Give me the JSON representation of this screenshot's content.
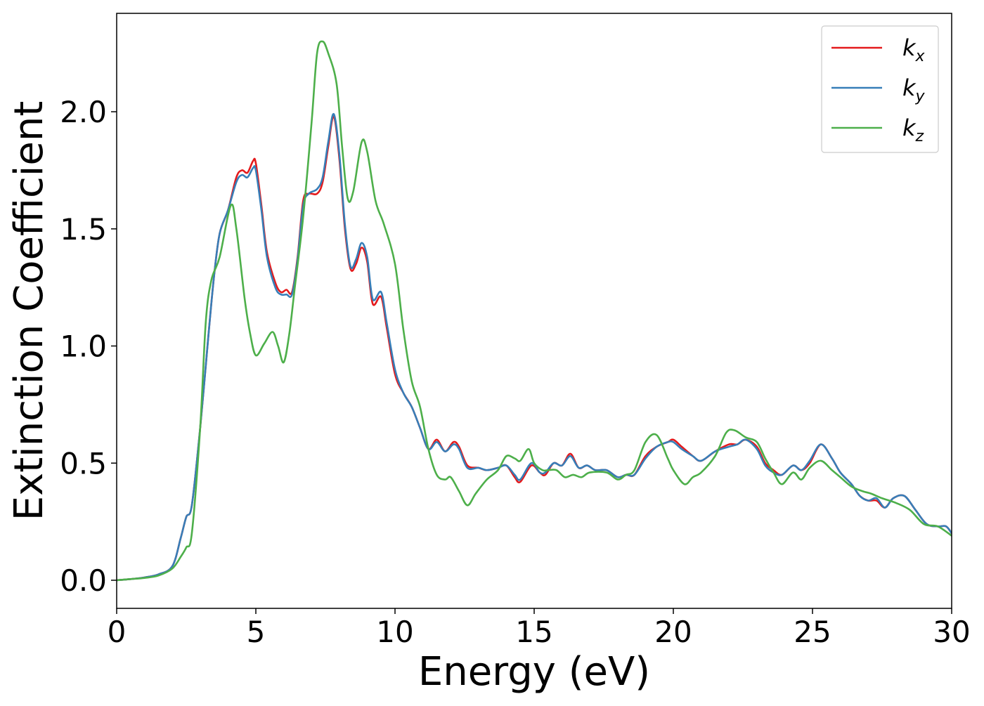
{
  "chart_data": {
    "type": "line",
    "title": "",
    "xlabel": "Energy (eV)",
    "ylabel": "Extinction Coefficient",
    "xlim": [
      0,
      30
    ],
    "ylim": [
      -0.12,
      2.42
    ],
    "xticks": [
      0,
      5,
      10,
      15,
      20,
      25,
      30
    ],
    "xtick_labels": [
      "0",
      "5",
      "10",
      "15",
      "20",
      "25",
      "30"
    ],
    "yticks": [
      0.0,
      0.5,
      1.0,
      1.5,
      2.0
    ],
    "ytick_labels": [
      "0.0",
      "0.5",
      "1.0",
      "1.5",
      "2.0"
    ],
    "grid": false,
    "legend_position": "top-right",
    "series": [
      {
        "name": "k_x",
        "label_base": "k",
        "label_sub": "x",
        "color": "#e41a1c",
        "points": [
          [
            0,
            0
          ],
          [
            0.5,
            0.005
          ],
          [
            1,
            0.012
          ],
          [
            1.5,
            0.025
          ],
          [
            2,
            0.06
          ],
          [
            2.3,
            0.18
          ],
          [
            2.5,
            0.27
          ],
          [
            2.7,
            0.32
          ],
          [
            3,
            0.65
          ],
          [
            3.3,
            1.05
          ],
          [
            3.5,
            1.3
          ],
          [
            3.7,
            1.48
          ],
          [
            4,
            1.58
          ],
          [
            4.3,
            1.72
          ],
          [
            4.5,
            1.75
          ],
          [
            4.7,
            1.74
          ],
          [
            4.9,
            1.79
          ],
          [
            5,
            1.78
          ],
          [
            5.2,
            1.6
          ],
          [
            5.4,
            1.4
          ],
          [
            5.7,
            1.27
          ],
          [
            5.9,
            1.23
          ],
          [
            6.1,
            1.24
          ],
          [
            6.3,
            1.23
          ],
          [
            6.5,
            1.38
          ],
          [
            6.7,
            1.62
          ],
          [
            6.9,
            1.65
          ],
          [
            7.2,
            1.65
          ],
          [
            7.4,
            1.7
          ],
          [
            7.6,
            1.85
          ],
          [
            7.8,
            1.98
          ],
          [
            8,
            1.8
          ],
          [
            8.2,
            1.5
          ],
          [
            8.4,
            1.33
          ],
          [
            8.6,
            1.35
          ],
          [
            8.8,
            1.42
          ],
          [
            9,
            1.36
          ],
          [
            9.2,
            1.18
          ],
          [
            9.5,
            1.21
          ],
          [
            9.7,
            1.08
          ],
          [
            10,
            0.88
          ],
          [
            10.3,
            0.8
          ],
          [
            10.6,
            0.74
          ],
          [
            10.9,
            0.65
          ],
          [
            11.2,
            0.56
          ],
          [
            11.5,
            0.6
          ],
          [
            11.8,
            0.55
          ],
          [
            12.1,
            0.59
          ],
          [
            12.3,
            0.57
          ],
          [
            12.6,
            0.49
          ],
          [
            13,
            0.48
          ],
          [
            13.3,
            0.47
          ],
          [
            13.7,
            0.48
          ],
          [
            14,
            0.49
          ],
          [
            14.3,
            0.44
          ],
          [
            14.5,
            0.42
          ],
          [
            14.9,
            0.49
          ],
          [
            15.2,
            0.46
          ],
          [
            15.4,
            0.45
          ],
          [
            15.7,
            0.5
          ],
          [
            16,
            0.49
          ],
          [
            16.3,
            0.54
          ],
          [
            16.6,
            0.48
          ],
          [
            16.9,
            0.49
          ],
          [
            17.2,
            0.47
          ],
          [
            17.6,
            0.47
          ],
          [
            18,
            0.44
          ],
          [
            18.3,
            0.45
          ],
          [
            18.6,
            0.45
          ],
          [
            19,
            0.53
          ],
          [
            19.4,
            0.57
          ],
          [
            19.8,
            0.59
          ],
          [
            20,
            0.6
          ],
          [
            20.3,
            0.57
          ],
          [
            20.7,
            0.53
          ],
          [
            21,
            0.51
          ],
          [
            21.5,
            0.55
          ],
          [
            22,
            0.58
          ],
          [
            22.3,
            0.58
          ],
          [
            22.6,
            0.6
          ],
          [
            23,
            0.57
          ],
          [
            23.3,
            0.5
          ],
          [
            23.6,
            0.47
          ],
          [
            23.9,
            0.45
          ],
          [
            24.3,
            0.49
          ],
          [
            24.6,
            0.47
          ],
          [
            24.9,
            0.5
          ],
          [
            25.3,
            0.58
          ],
          [
            25.7,
            0.52
          ],
          [
            26,
            0.46
          ],
          [
            26.4,
            0.41
          ],
          [
            26.7,
            0.36
          ],
          [
            27,
            0.34
          ],
          [
            27.3,
            0.34
          ],
          [
            27.6,
            0.31
          ],
          [
            27.9,
            0.35
          ],
          [
            28.3,
            0.36
          ],
          [
            28.7,
            0.3
          ],
          [
            29.1,
            0.24
          ],
          [
            29.5,
            0.23
          ],
          [
            29.8,
            0.23
          ],
          [
            30,
            0.2
          ]
        ]
      },
      {
        "name": "k_y",
        "label_base": "k",
        "label_sub": "y",
        "color": "#377eb8",
        "points": [
          [
            0,
            0
          ],
          [
            0.5,
            0.005
          ],
          [
            1,
            0.012
          ],
          [
            1.5,
            0.025
          ],
          [
            2,
            0.06
          ],
          [
            2.3,
            0.18
          ],
          [
            2.5,
            0.27
          ],
          [
            2.7,
            0.32
          ],
          [
            3,
            0.65
          ],
          [
            3.3,
            1.05
          ],
          [
            3.5,
            1.3
          ],
          [
            3.7,
            1.48
          ],
          [
            4,
            1.58
          ],
          [
            4.3,
            1.7
          ],
          [
            4.5,
            1.73
          ],
          [
            4.7,
            1.72
          ],
          [
            4.9,
            1.76
          ],
          [
            5,
            1.75
          ],
          [
            5.2,
            1.58
          ],
          [
            5.4,
            1.38
          ],
          [
            5.7,
            1.25
          ],
          [
            5.9,
            1.22
          ],
          [
            6.1,
            1.22
          ],
          [
            6.3,
            1.22
          ],
          [
            6.5,
            1.37
          ],
          [
            6.7,
            1.6
          ],
          [
            6.9,
            1.65
          ],
          [
            7.2,
            1.67
          ],
          [
            7.4,
            1.72
          ],
          [
            7.6,
            1.87
          ],
          [
            7.8,
            1.99
          ],
          [
            8,
            1.82
          ],
          [
            8.2,
            1.52
          ],
          [
            8.4,
            1.34
          ],
          [
            8.6,
            1.37
          ],
          [
            8.8,
            1.44
          ],
          [
            9,
            1.38
          ],
          [
            9.2,
            1.2
          ],
          [
            9.5,
            1.23
          ],
          [
            9.7,
            1.1
          ],
          [
            10,
            0.9
          ],
          [
            10.3,
            0.8
          ],
          [
            10.6,
            0.74
          ],
          [
            10.9,
            0.65
          ],
          [
            11.2,
            0.56
          ],
          [
            11.5,
            0.59
          ],
          [
            11.8,
            0.55
          ],
          [
            12.1,
            0.58
          ],
          [
            12.3,
            0.56
          ],
          [
            12.6,
            0.48
          ],
          [
            13,
            0.48
          ],
          [
            13.3,
            0.47
          ],
          [
            13.7,
            0.48
          ],
          [
            14,
            0.49
          ],
          [
            14.3,
            0.45
          ],
          [
            14.5,
            0.43
          ],
          [
            14.9,
            0.5
          ],
          [
            15.2,
            0.46
          ],
          [
            15.4,
            0.46
          ],
          [
            15.7,
            0.5
          ],
          [
            16,
            0.49
          ],
          [
            16.3,
            0.53
          ],
          [
            16.6,
            0.48
          ],
          [
            16.9,
            0.49
          ],
          [
            17.2,
            0.47
          ],
          [
            17.6,
            0.47
          ],
          [
            18,
            0.44
          ],
          [
            18.3,
            0.45
          ],
          [
            18.6,
            0.45
          ],
          [
            19,
            0.52
          ],
          [
            19.4,
            0.57
          ],
          [
            19.8,
            0.59
          ],
          [
            20,
            0.59
          ],
          [
            20.3,
            0.56
          ],
          [
            20.7,
            0.53
          ],
          [
            21,
            0.51
          ],
          [
            21.5,
            0.55
          ],
          [
            22,
            0.57
          ],
          [
            22.3,
            0.58
          ],
          [
            22.6,
            0.6
          ],
          [
            23,
            0.56
          ],
          [
            23.3,
            0.49
          ],
          [
            23.6,
            0.46
          ],
          [
            23.9,
            0.45
          ],
          [
            24.3,
            0.49
          ],
          [
            24.6,
            0.47
          ],
          [
            24.9,
            0.51
          ],
          [
            25.3,
            0.58
          ],
          [
            25.7,
            0.52
          ],
          [
            26,
            0.46
          ],
          [
            26.4,
            0.41
          ],
          [
            26.7,
            0.36
          ],
          [
            27,
            0.34
          ],
          [
            27.3,
            0.35
          ],
          [
            27.6,
            0.31
          ],
          [
            27.9,
            0.35
          ],
          [
            28.3,
            0.36
          ],
          [
            28.7,
            0.3
          ],
          [
            29.1,
            0.24
          ],
          [
            29.5,
            0.23
          ],
          [
            29.8,
            0.23
          ],
          [
            30,
            0.2
          ]
        ]
      },
      {
        "name": "k_z",
        "label_base": "k",
        "label_sub": "z",
        "color": "#4daf4a",
        "points": [
          [
            0,
            0
          ],
          [
            0.5,
            0.005
          ],
          [
            1,
            0.01
          ],
          [
            1.5,
            0.02
          ],
          [
            2,
            0.05
          ],
          [
            2.3,
            0.1
          ],
          [
            2.5,
            0.14
          ],
          [
            2.7,
            0.2
          ],
          [
            3,
            0.65
          ],
          [
            3.2,
            1.1
          ],
          [
            3.4,
            1.28
          ],
          [
            3.7,
            1.38
          ],
          [
            4.1,
            1.6
          ],
          [
            4.3,
            1.5
          ],
          [
            4.6,
            1.2
          ],
          [
            4.8,
            1.05
          ],
          [
            5,
            0.96
          ],
          [
            5.3,
            1.01
          ],
          [
            5.6,
            1.06
          ],
          [
            5.8,
            1.0
          ],
          [
            6,
            0.93
          ],
          [
            6.2,
            1.05
          ],
          [
            6.4,
            1.25
          ],
          [
            6.7,
            1.55
          ],
          [
            7,
            1.95
          ],
          [
            7.2,
            2.25
          ],
          [
            7.4,
            2.3
          ],
          [
            7.6,
            2.25
          ],
          [
            7.9,
            2.12
          ],
          [
            8.1,
            1.85
          ],
          [
            8.3,
            1.63
          ],
          [
            8.5,
            1.66
          ],
          [
            8.8,
            1.87
          ],
          [
            9,
            1.83
          ],
          [
            9.3,
            1.62
          ],
          [
            9.6,
            1.52
          ],
          [
            10,
            1.35
          ],
          [
            10.3,
            1.07
          ],
          [
            10.6,
            0.85
          ],
          [
            10.9,
            0.74
          ],
          [
            11.2,
            0.56
          ],
          [
            11.5,
            0.45
          ],
          [
            11.8,
            0.43
          ],
          [
            12,
            0.44
          ],
          [
            12.3,
            0.38
          ],
          [
            12.6,
            0.32
          ],
          [
            12.9,
            0.37
          ],
          [
            13.3,
            0.43
          ],
          [
            13.7,
            0.47
          ],
          [
            14,
            0.53
          ],
          [
            14.3,
            0.52
          ],
          [
            14.5,
            0.51
          ],
          [
            14.8,
            0.56
          ],
          [
            15,
            0.5
          ],
          [
            15.3,
            0.47
          ],
          [
            15.5,
            0.47
          ],
          [
            15.8,
            0.47
          ],
          [
            16.1,
            0.44
          ],
          [
            16.4,
            0.45
          ],
          [
            16.7,
            0.44
          ],
          [
            17,
            0.46
          ],
          [
            17.6,
            0.46
          ],
          [
            18,
            0.43
          ],
          [
            18.3,
            0.45
          ],
          [
            18.6,
            0.47
          ],
          [
            19,
            0.59
          ],
          [
            19.4,
            0.62
          ],
          [
            19.8,
            0.52
          ],
          [
            20,
            0.47
          ],
          [
            20.4,
            0.41
          ],
          [
            20.7,
            0.44
          ],
          [
            21,
            0.46
          ],
          [
            21.5,
            0.53
          ],
          [
            21.9,
            0.63
          ],
          [
            22.2,
            0.64
          ],
          [
            22.6,
            0.61
          ],
          [
            23,
            0.59
          ],
          [
            23.3,
            0.52
          ],
          [
            23.6,
            0.46
          ],
          [
            23.9,
            0.41
          ],
          [
            24.3,
            0.46
          ],
          [
            24.6,
            0.43
          ],
          [
            24.9,
            0.48
          ],
          [
            25.3,
            0.51
          ],
          [
            25.7,
            0.47
          ],
          [
            26,
            0.44
          ],
          [
            26.4,
            0.4
          ],
          [
            26.8,
            0.38
          ],
          [
            27.1,
            0.37
          ],
          [
            27.5,
            0.35
          ],
          [
            28,
            0.33
          ],
          [
            28.5,
            0.3
          ],
          [
            29,
            0.24
          ],
          [
            29.5,
            0.23
          ],
          [
            30,
            0.19
          ]
        ]
      }
    ]
  }
}
